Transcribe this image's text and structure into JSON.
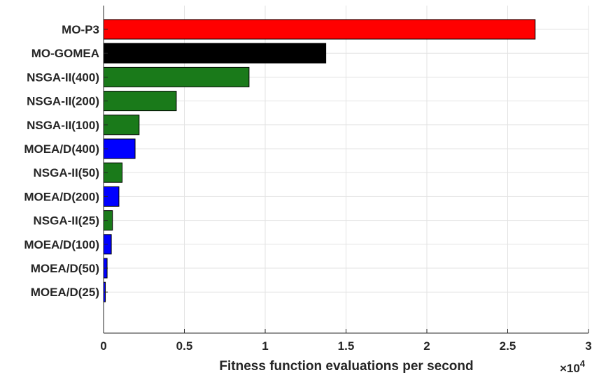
{
  "chart_data": {
    "type": "bar",
    "orientation": "horizontal",
    "categories": [
      "MO-P3",
      "MO-GOMEA",
      "NSGA-II(400)",
      "NSGA-II(200)",
      "NSGA-II(100)",
      "MOEA/D(400)",
      "NSGA-II(50)",
      "MOEA/D(200)",
      "NSGA-II(25)",
      "MOEA/D(100)",
      "MOEA/D(50)",
      "MOEA/D(25)"
    ],
    "values": [
      26700,
      13750,
      9000,
      4500,
      2200,
      1950,
      1150,
      950,
      550,
      480,
      220,
      110
    ],
    "colors": [
      "#ff0000",
      "#000000",
      "#1a7a1a",
      "#1a7a1a",
      "#1a7a1a",
      "#0000ff",
      "#1a7a1a",
      "#0000ff",
      "#1a7a1a",
      "#0000ff",
      "#0000ff",
      "#0000ff"
    ],
    "title": "",
    "xlabel": "Fitness function evaluations per second",
    "ylabel": "",
    "xlim": [
      0,
      30000
    ],
    "x_ticks": [
      0,
      5000,
      10000,
      15000,
      20000,
      25000,
      30000
    ],
    "x_tick_labels": [
      "0",
      "0.5",
      "1",
      "1.5",
      "2",
      "2.5",
      "3"
    ],
    "x_exponent_label": "×10",
    "x_exponent_power": "4",
    "grid": true
  }
}
